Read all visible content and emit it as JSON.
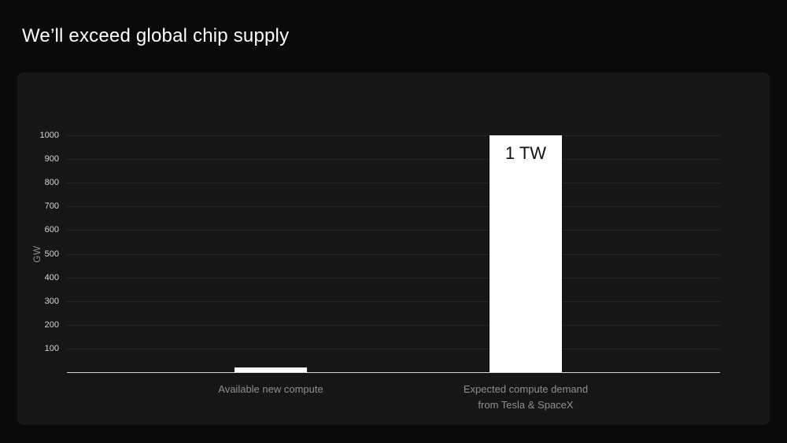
{
  "page": {
    "title": "We’ll exceed global chip supply"
  },
  "chart_data": {
    "type": "bar",
    "title": "We’ll exceed global chip supply",
    "xlabel": "",
    "ylabel": "GW",
    "ylim": [
      0,
      1000
    ],
    "ytick_step": 100,
    "grid": true,
    "legend": false,
    "categories": [
      "Available new compute",
      "Expected compute demand from Tesla & SpaceX"
    ],
    "category_label_lines": [
      [
        "Available new compute"
      ],
      [
        "Expected compute demand",
        "from Tesla & SpaceX"
      ]
    ],
    "values": [
      20,
      1000
    ],
    "bar_value_labels": [
      "",
      "1 TW"
    ],
    "bar_color": "#ffffff",
    "colors": {
      "background": "#0a0a0a",
      "panel": "#161616",
      "gridline": "#262626",
      "axis_line": "#d9d9d9",
      "tick_label": "#d6d6d6",
      "category_label": "#8f8f8f",
      "bar_value_label": "#111111"
    }
  }
}
